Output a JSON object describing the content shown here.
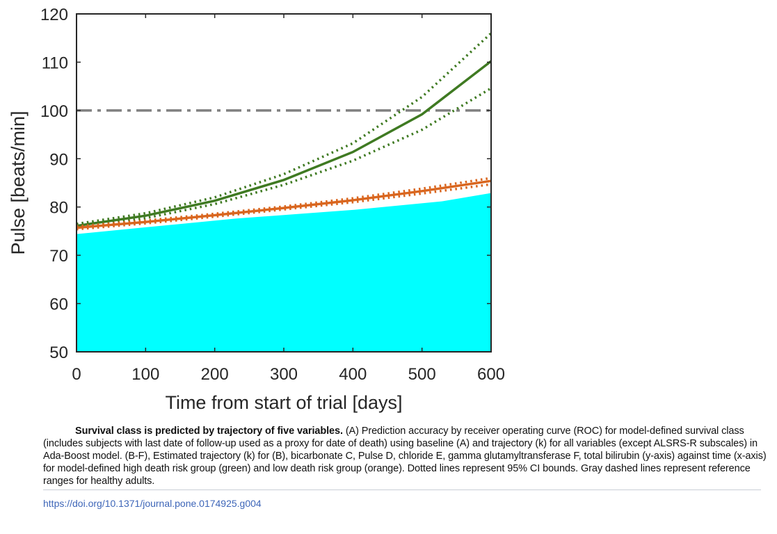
{
  "chart_data": {
    "type": "line",
    "xlabel": "Time from start of trial [days]",
    "ylabel": "Pulse [beats/min]",
    "xlim": [
      0,
      600
    ],
    "ylim": [
      50,
      120
    ],
    "x_ticks": [
      "0",
      "100",
      "200",
      "300",
      "400",
      "500",
      "600"
    ],
    "y_ticks": [
      "50",
      "60",
      "70",
      "80",
      "90",
      "100",
      "110",
      "120"
    ],
    "grid": false,
    "reference_line": {
      "y": 100,
      "style": "dash-dot",
      "color": "#808080"
    },
    "series": [
      {
        "group": "high death risk",
        "color": "#3f7a22",
        "x": [
          0,
          100,
          200,
          300,
          400,
          500,
          600
        ],
        "values": [
          76.1,
          78.2,
          81.3,
          85.6,
          91.4,
          99.2,
          110.2
        ],
        "ci_upper": [
          76.5,
          78.7,
          82.0,
          86.8,
          93.2,
          102.8,
          116.0
        ],
        "ci_lower": [
          75.7,
          77.7,
          80.6,
          84.6,
          89.6,
          96.0,
          104.6
        ]
      },
      {
        "group": "low death risk",
        "color": "#d9661f",
        "x": [
          0,
          100,
          200,
          300,
          400,
          500,
          600
        ],
        "values": [
          75.7,
          76.9,
          78.3,
          79.8,
          81.4,
          83.3,
          85.4
        ],
        "ci_upper": [
          76.0,
          77.2,
          78.6,
          80.1,
          81.8,
          83.8,
          86.0
        ],
        "ci_lower": [
          75.4,
          76.6,
          78.0,
          79.5,
          81.0,
          82.8,
          84.7
        ]
      }
    ]
  },
  "fill_region": {
    "color": "#00ffff",
    "top_edge": [
      [
        0,
        74.4
      ],
      [
        100,
        75.8
      ],
      [
        230,
        77.6
      ],
      [
        400,
        79.4
      ],
      [
        530,
        81.2
      ],
      [
        600,
        82.9
      ]
    ]
  },
  "caption": {
    "bold": "Survival class is predicted by trajectory of five variables.",
    "text": " (A) Prediction accuracy by receiver operating curve (ROC) for model-defined survival class (includes subjects with last date of follow-up used as a proxy for date of death) using baseline (A) and trajectory (k) for all variables (except ALSRS-R subscales) in Ada-Boost model. (B-F), Estimated trajectory (k) for (B), bicarbonate C, Pulse D, chloride E, gamma glutamyltransferase F, total bilirubin (y-axis) against time (x-axis) for model-defined high death risk group (green) and low death risk group (orange). Dotted lines represent 95% CI bounds. Gray dashed lines represent reference ranges for healthy adults."
  },
  "doi": "https://doi.org/10.1371/journal.pone.0174925.g004"
}
